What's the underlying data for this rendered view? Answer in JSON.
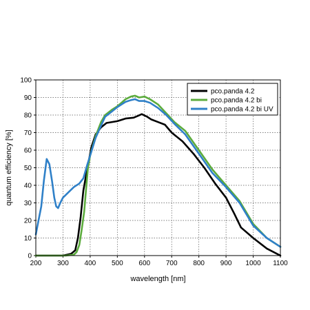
{
  "chart_data": {
    "type": "line",
    "xlabel": "wavelength [nm]",
    "ylabel": "quantum efficiency [%]",
    "xlim": [
      200,
      1100
    ],
    "ylim": [
      0,
      100
    ],
    "xticks": [
      200,
      300,
      400,
      500,
      600,
      700,
      800,
      900,
      1000,
      1100
    ],
    "yticks": [
      0,
      10,
      20,
      30,
      40,
      50,
      60,
      70,
      80,
      90,
      100
    ],
    "grid": true,
    "legend_position": "top-right",
    "series": [
      {
        "name": "pco.panda 4.2",
        "color": "#000000",
        "points": [
          [
            200,
            0
          ],
          [
            300,
            0
          ],
          [
            330,
            1
          ],
          [
            345,
            3
          ],
          [
            355,
            10
          ],
          [
            365,
            22
          ],
          [
            375,
            37
          ],
          [
            390,
            50
          ],
          [
            405,
            62
          ],
          [
            420,
            69
          ],
          [
            440,
            73
          ],
          [
            460,
            75.5
          ],
          [
            500,
            76.5
          ],
          [
            530,
            78
          ],
          [
            560,
            78.5
          ],
          [
            575,
            79.5
          ],
          [
            590,
            80.5
          ],
          [
            610,
            79
          ],
          [
            625,
            77.5
          ],
          [
            650,
            76
          ],
          [
            675,
            74.5
          ],
          [
            700,
            70
          ],
          [
            740,
            65
          ],
          [
            780,
            58
          ],
          [
            820,
            50
          ],
          [
            860,
            41
          ],
          [
            900,
            33
          ],
          [
            930,
            24
          ],
          [
            955,
            16
          ],
          [
            1000,
            10
          ],
          [
            1050,
            4
          ],
          [
            1100,
            0
          ]
        ]
      },
      {
        "name": "pco.panda 4.2 bi",
        "color": "#5bab3c",
        "points": [
          [
            200,
            0
          ],
          [
            310,
            0
          ],
          [
            340,
            0.5
          ],
          [
            350,
            2
          ],
          [
            360,
            6
          ],
          [
            368,
            14
          ],
          [
            378,
            25
          ],
          [
            385,
            38
          ],
          [
            392,
            50
          ],
          [
            400,
            57
          ],
          [
            420,
            68
          ],
          [
            440,
            76
          ],
          [
            455,
            80
          ],
          [
            480,
            83
          ],
          [
            500,
            85
          ],
          [
            515,
            87
          ],
          [
            530,
            89
          ],
          [
            550,
            90.5
          ],
          [
            565,
            91
          ],
          [
            580,
            90
          ],
          [
            600,
            90.5
          ],
          [
            620,
            89
          ],
          [
            650,
            86
          ],
          [
            680,
            81
          ],
          [
            710,
            76
          ],
          [
            750,
            71
          ],
          [
            800,
            60
          ],
          [
            850,
            49
          ],
          [
            900,
            40
          ],
          [
            950,
            31
          ],
          [
            1000,
            18
          ],
          [
            1050,
            10
          ],
          [
            1100,
            5
          ]
        ]
      },
      {
        "name": "pco.panda 4.2 bi UV",
        "color": "#2f80c8",
        "points": [
          [
            200,
            12
          ],
          [
            210,
            20
          ],
          [
            220,
            28
          ],
          [
            230,
            43
          ],
          [
            240,
            55
          ],
          [
            250,
            52
          ],
          [
            260,
            42
          ],
          [
            268,
            33
          ],
          [
            275,
            28
          ],
          [
            282,
            27
          ],
          [
            290,
            30
          ],
          [
            300,
            33
          ],
          [
            320,
            36
          ],
          [
            340,
            39
          ],
          [
            360,
            41
          ],
          [
            375,
            44
          ],
          [
            390,
            52
          ],
          [
            400,
            57
          ],
          [
            420,
            67
          ],
          [
            440,
            74
          ],
          [
            455,
            79
          ],
          [
            480,
            82
          ],
          [
            500,
            84.5
          ],
          [
            515,
            86
          ],
          [
            530,
            87.5
          ],
          [
            550,
            88.5
          ],
          [
            565,
            89
          ],
          [
            580,
            88
          ],
          [
            600,
            88
          ],
          [
            620,
            87
          ],
          [
            650,
            84
          ],
          [
            680,
            80
          ],
          [
            710,
            75
          ],
          [
            750,
            69
          ],
          [
            800,
            58
          ],
          [
            850,
            47
          ],
          [
            900,
            39
          ],
          [
            950,
            30
          ],
          [
            1000,
            17
          ],
          [
            1050,
            10
          ],
          [
            1100,
            5
          ]
        ]
      }
    ]
  }
}
